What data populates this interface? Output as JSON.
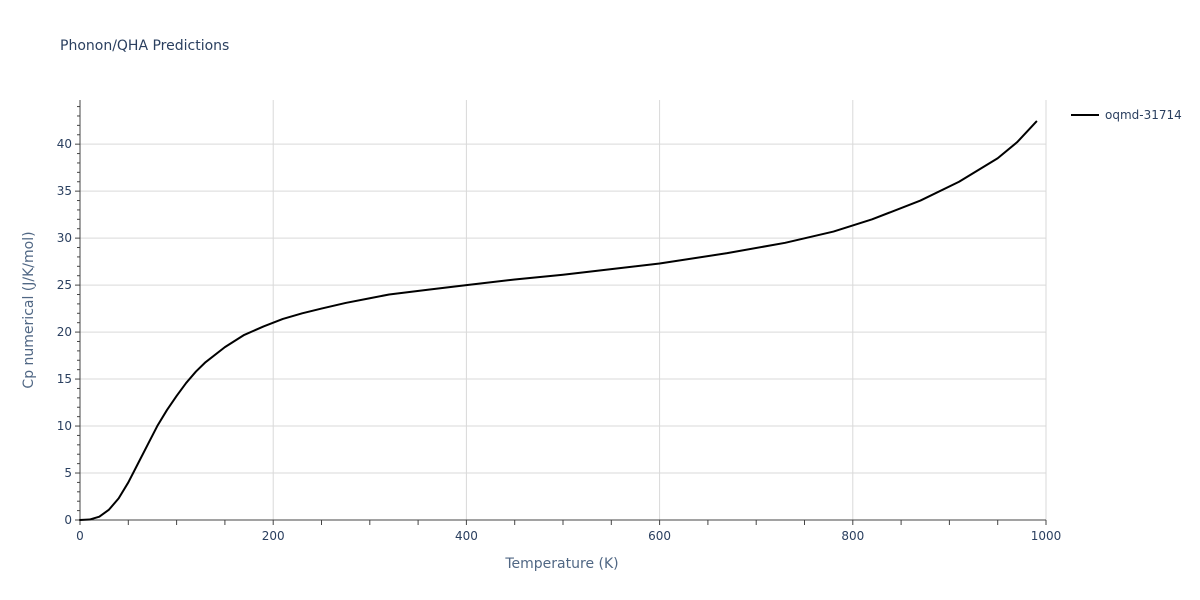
{
  "chart_data": {
    "type": "line",
    "title": "Phonon/QHA Predictions",
    "xlabel": "Temperature (K)",
    "ylabel": "Cp numerical (J/K/mol)",
    "xlim": [
      0,
      1000
    ],
    "ylim": [
      0,
      44.7
    ],
    "xticks": [
      0,
      200,
      400,
      600,
      800,
      1000
    ],
    "yticks": [
      0,
      5,
      10,
      15,
      20,
      25,
      30,
      35,
      40
    ],
    "grid": true,
    "legend_position": "top-right",
    "series": [
      {
        "name": "oqmd-31714",
        "color": "#000000",
        "x": [
          0,
          10,
          20,
          30,
          40,
          50,
          60,
          70,
          80,
          90,
          100,
          110,
          120,
          130,
          150,
          170,
          190,
          210,
          230,
          250,
          275,
          300,
          320,
          360,
          400,
          450,
          500,
          550,
          600,
          670,
          730,
          780,
          820,
          870,
          910,
          950,
          970,
          990
        ],
        "y": [
          0,
          0.05,
          0.35,
          1.1,
          2.3,
          4.0,
          6.0,
          8.0,
          10.0,
          11.7,
          13.2,
          14.6,
          15.8,
          16.8,
          18.4,
          19.7,
          20.6,
          21.4,
          22.0,
          22.5,
          23.1,
          23.6,
          24.0,
          24.5,
          25.0,
          25.6,
          26.1,
          26.7,
          27.3,
          28.4,
          29.5,
          30.7,
          32.0,
          34.0,
          36.0,
          38.5,
          40.2,
          42.4
        ]
      }
    ]
  }
}
